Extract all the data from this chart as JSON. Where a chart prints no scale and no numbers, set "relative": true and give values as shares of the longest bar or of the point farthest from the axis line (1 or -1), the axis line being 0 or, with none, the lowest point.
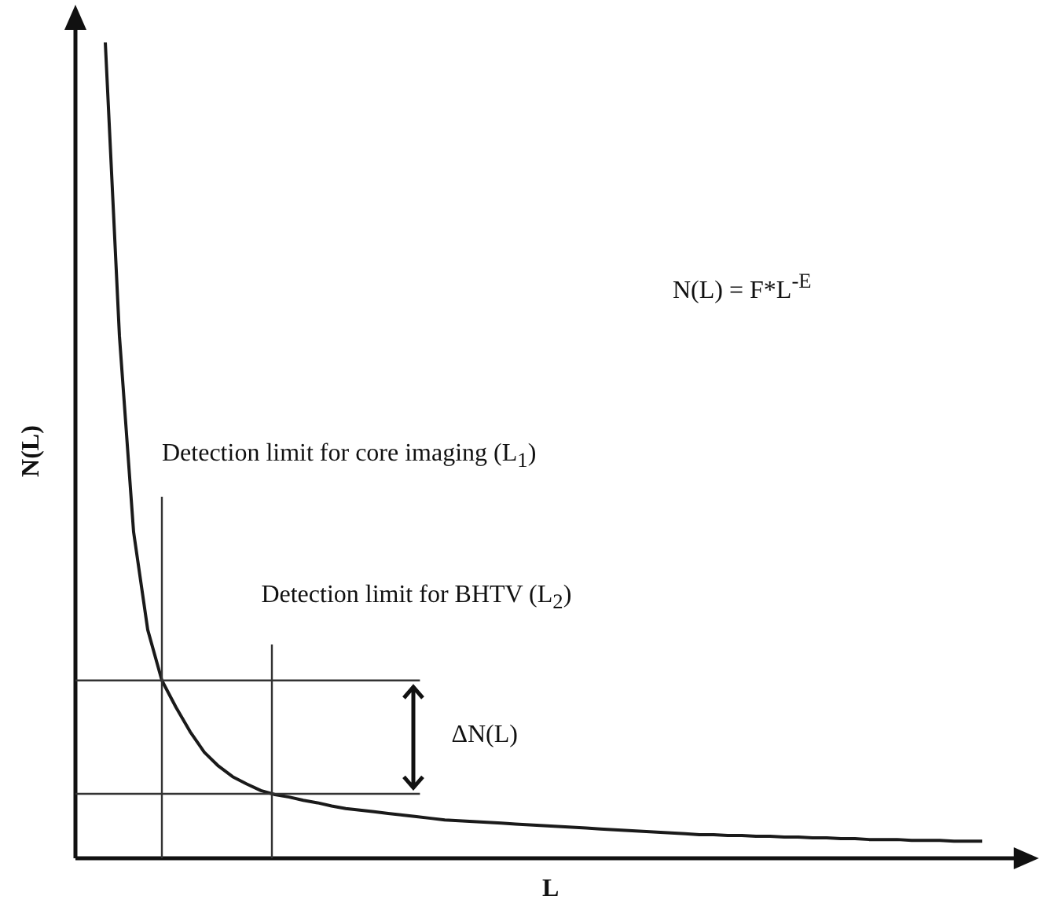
{
  "chart_data": {
    "type": "line",
    "relative": true,
    "marker": "none",
    "line_style": "solid",
    "xlabel": "L",
    "ylabel": "N(L)",
    "categories": [
      null,
      null,
      null,
      null,
      null,
      null,
      null,
      null,
      null,
      null,
      null,
      null,
      null,
      null,
      null,
      null,
      null,
      null,
      null,
      null,
      null,
      null,
      null,
      null,
      null,
      null,
      null,
      null,
      null,
      null,
      null,
      null,
      null,
      null,
      null,
      null,
      null,
      null,
      null,
      null,
      null,
      null,
      null,
      null,
      null,
      null,
      null,
      null,
      null,
      null,
      null,
      null,
      null,
      null,
      null,
      null,
      null,
      null,
      null,
      null,
      null,
      null,
      null
    ],
    "series": [
      {
        "color": "#1a1a1a",
        "values": [
          1,
          0.64,
          0.4,
          0.28,
          0.218,
          0.185,
          0.155,
          0.13,
          0.113,
          0.1,
          0.091,
          0.083,
          0.078,
          0.075,
          0.071,
          0.068,
          0.064,
          0.061,
          0.059,
          0.057,
          0.055,
          0.053,
          0.051,
          0.049,
          0.047,
          0.046,
          0.045,
          0.044,
          0.043,
          0.042,
          0.041,
          0.04,
          0.039,
          0.038,
          0.037,
          0.036,
          0.035,
          0.034,
          0.033,
          0.032,
          0.031,
          0.03,
          0.029,
          0.029,
          0.028,
          0.028,
          0.027,
          0.027,
          0.026,
          0.026,
          0.025,
          0.025,
          0.024,
          0.024,
          0.023,
          0.023,
          0.023,
          0.022,
          0.022,
          0.022,
          0.021,
          0.021,
          0.021
        ]
      }
    ],
    "ref_lines": [
      {
        "axis": "y",
        "value": 0.218,
        "color": "#333333"
      },
      {
        "axis": "y",
        "value": 0.079,
        "color": "#333333"
      }
    ],
    "annotations": [
      "Detection limit for core imaging (L$_{1}$)",
      "Detection limit for BHTV (L$_{2}$)",
      "N(L) = F*L$^{-E}$",
      "ΔN(L)"
    ]
  }
}
